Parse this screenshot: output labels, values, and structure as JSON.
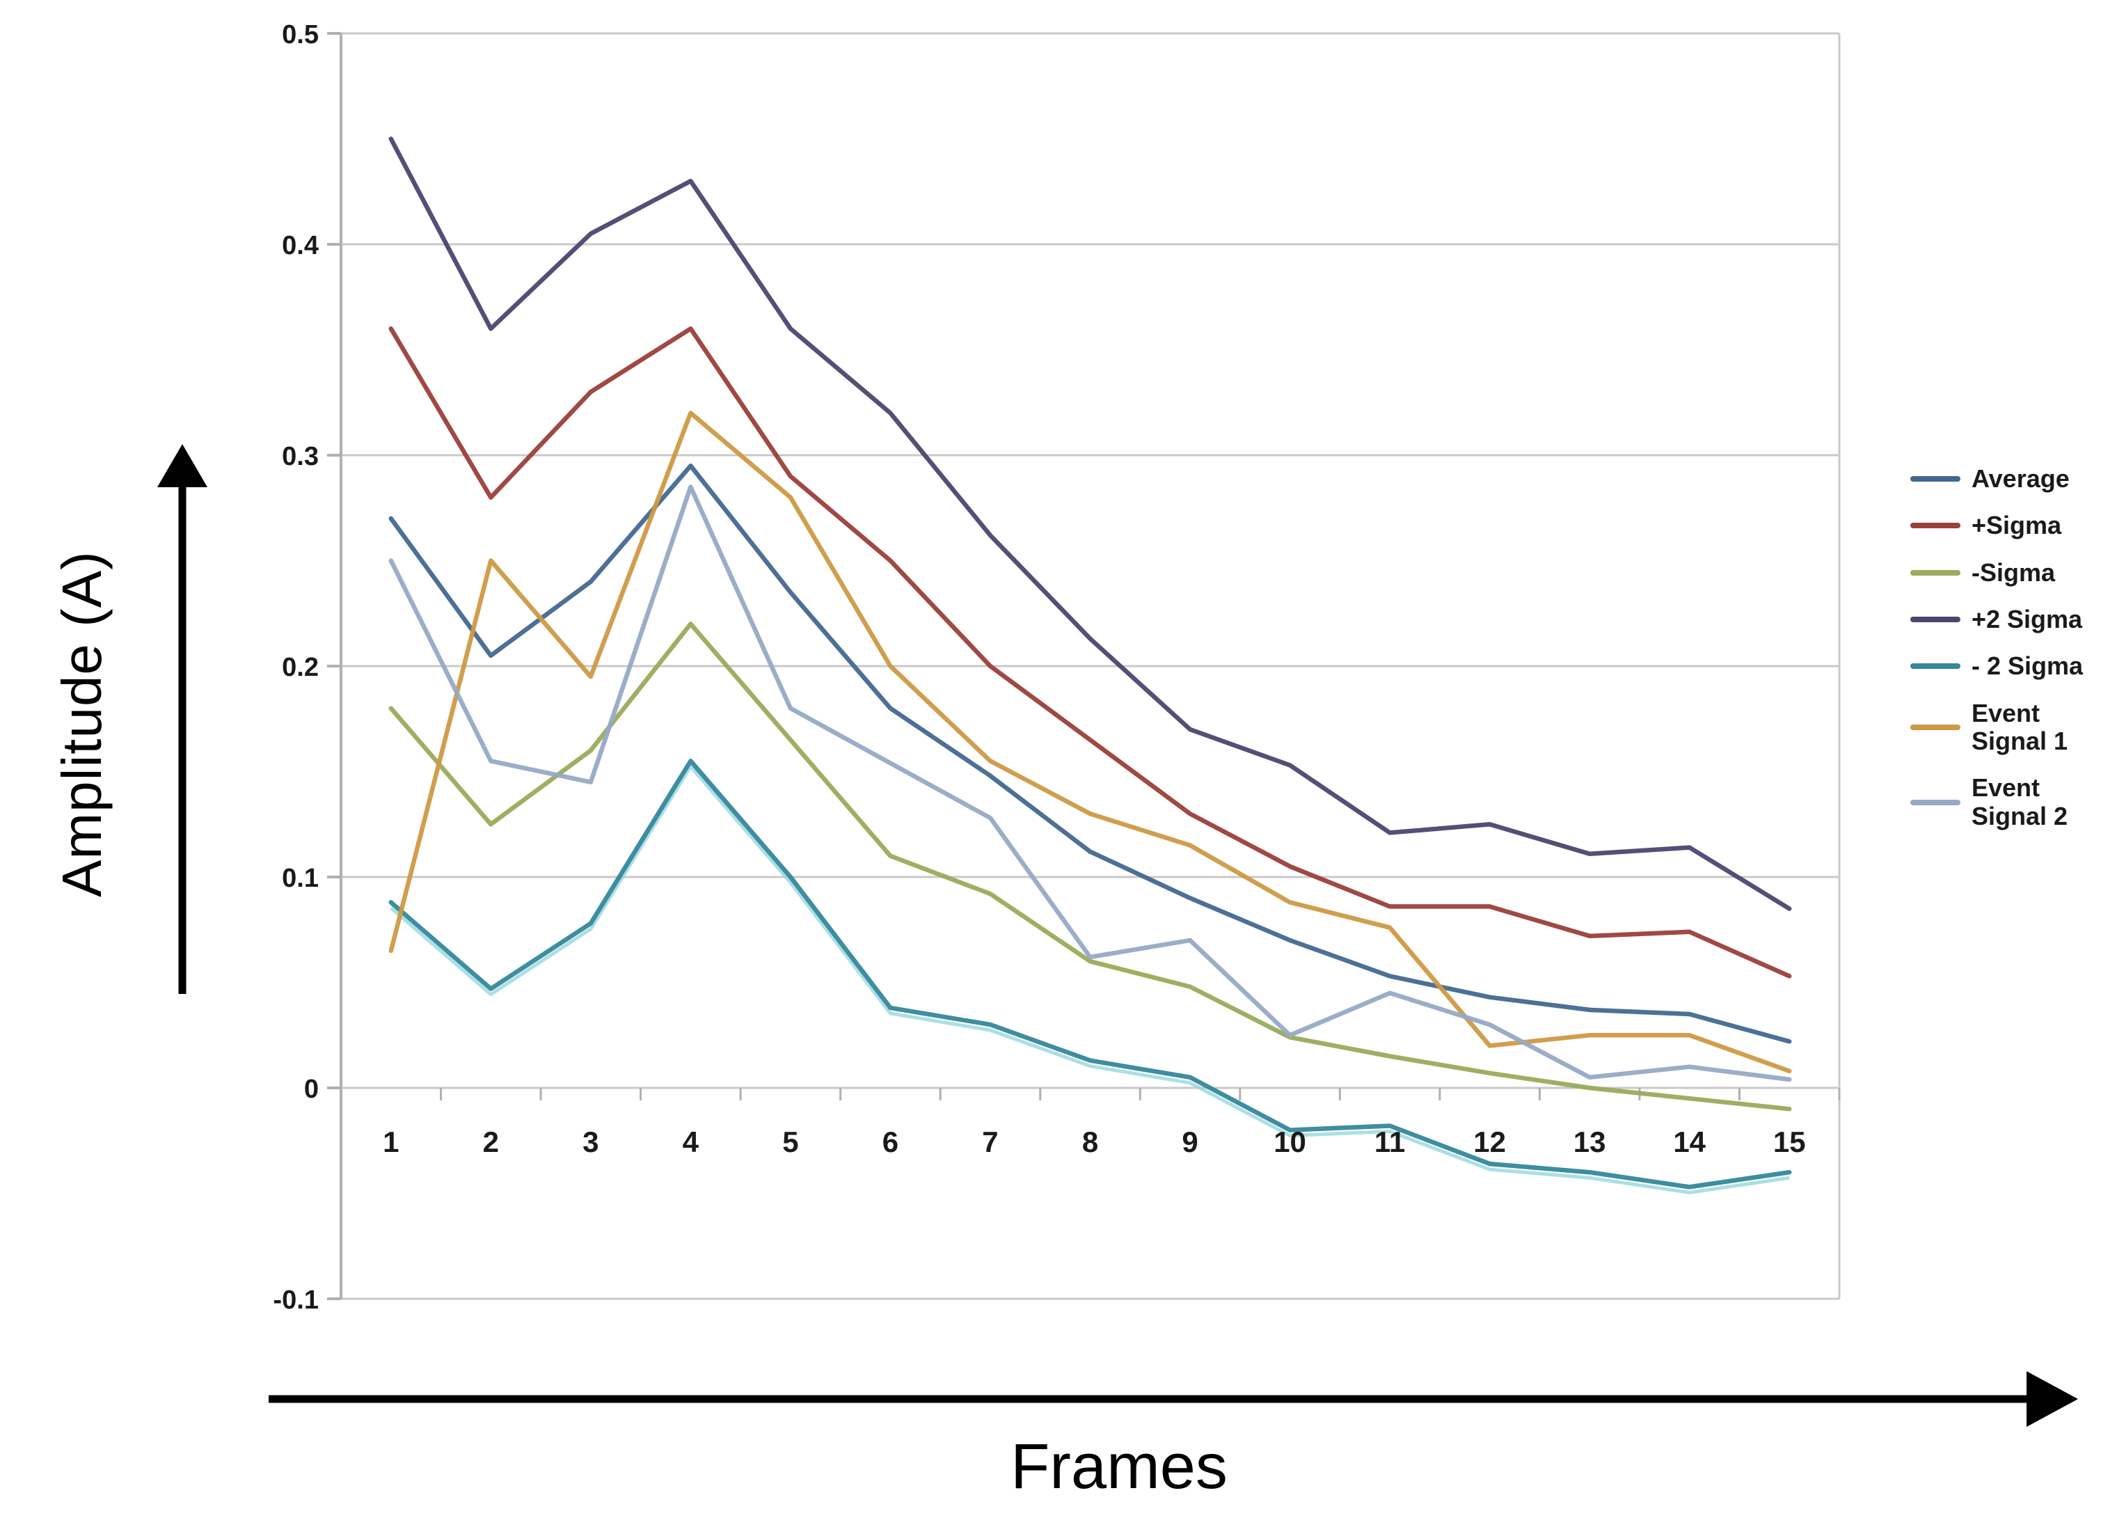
{
  "page": {
    "background": "#ffffff"
  },
  "axes": {
    "y_title": "Amplitude (A)",
    "x_title": "Frames"
  },
  "chart_data": {
    "type": "line",
    "title": "",
    "xlabel": "Frames",
    "ylabel": "Amplitude (A)",
    "x": [
      1,
      2,
      3,
      4,
      5,
      6,
      7,
      8,
      9,
      10,
      11,
      12,
      13,
      14,
      15
    ],
    "x_tick_labels": [
      "1",
      "2",
      "3",
      "4",
      "5",
      "6",
      "7",
      "8",
      "9",
      "10",
      "11",
      "12",
      "13",
      "14",
      "15"
    ],
    "ylim": [
      -0.1,
      0.5
    ],
    "y_ticks": [
      0.5,
      0.4,
      0.3,
      0.2,
      0.1,
      0,
      -0.1
    ],
    "y_tick_labels": [
      "0.5",
      "0.4",
      "0.3",
      "0.2",
      "0.1",
      "0",
      "-0.1"
    ],
    "grid": true,
    "legend_position": "right",
    "colors": {
      "gridline": "#c9c9c9",
      "axis_line": "#b0b0b0",
      "tick": "#b0b0b0",
      "tick_label": "#1a1a1a",
      "arrow": "#000000"
    },
    "series": [
      {
        "name": "Average",
        "legend_label": "Average",
        "color": "#426890",
        "values": [
          0.27,
          0.205,
          0.24,
          0.295,
          0.235,
          0.18,
          0.148,
          0.112,
          0.09,
          0.07,
          0.053,
          0.043,
          0.037,
          0.035,
          0.022
        ]
      },
      {
        "name": "+Sigma",
        "legend_label": "+Sigma",
        "color": "#9b3f3a",
        "values": [
          0.36,
          0.28,
          0.33,
          0.36,
          0.29,
          0.25,
          0.2,
          0.165,
          0.13,
          0.105,
          0.086,
          0.086,
          0.072,
          0.074,
          0.053
        ]
      },
      {
        "name": "-Sigma",
        "legend_label": "-Sigma",
        "color": "#9aab5a",
        "values": [
          0.18,
          0.125,
          0.16,
          0.22,
          0.165,
          0.11,
          0.092,
          0.06,
          0.048,
          0.024,
          0.015,
          0.007,
          0.0,
          -0.005,
          -0.01
        ]
      },
      {
        "name": "+2 Sigma",
        "legend_label": "+2 Sigma",
        "color": "#4d4470",
        "values": [
          0.45,
          0.36,
          0.405,
          0.43,
          0.36,
          0.32,
          0.262,
          0.213,
          0.17,
          0.153,
          0.121,
          0.125,
          0.111,
          0.114,
          0.085
        ]
      },
      {
        "name": "- 2 Sigma",
        "legend_label": "- 2 Sigma",
        "color": "#35879b",
        "shadow": "#8ed4dc",
        "values": [
          0.088,
          0.047,
          0.078,
          0.155,
          0.1,
          0.038,
          0.03,
          0.013,
          0.005,
          -0.02,
          -0.018,
          -0.036,
          -0.04,
          -0.047,
          -0.04
        ]
      },
      {
        "name": "Event Signal 1",
        "legend_label": "Event\nSignal 1",
        "color": "#cd9943",
        "values": [
          0.065,
          0.25,
          0.195,
          0.32,
          0.28,
          0.2,
          0.155,
          0.13,
          0.115,
          0.088,
          0.076,
          0.02,
          0.025,
          0.025,
          0.008
        ]
      },
      {
        "name": "Event Signal 2",
        "legend_label": "Event\nSignal 2",
        "color": "#96a9c5",
        "values": [
          0.25,
          0.155,
          0.145,
          0.285,
          0.18,
          0.154,
          0.128,
          0.062,
          0.07,
          0.025,
          0.045,
          0.03,
          0.005,
          0.01,
          0.004
        ]
      }
    ]
  }
}
